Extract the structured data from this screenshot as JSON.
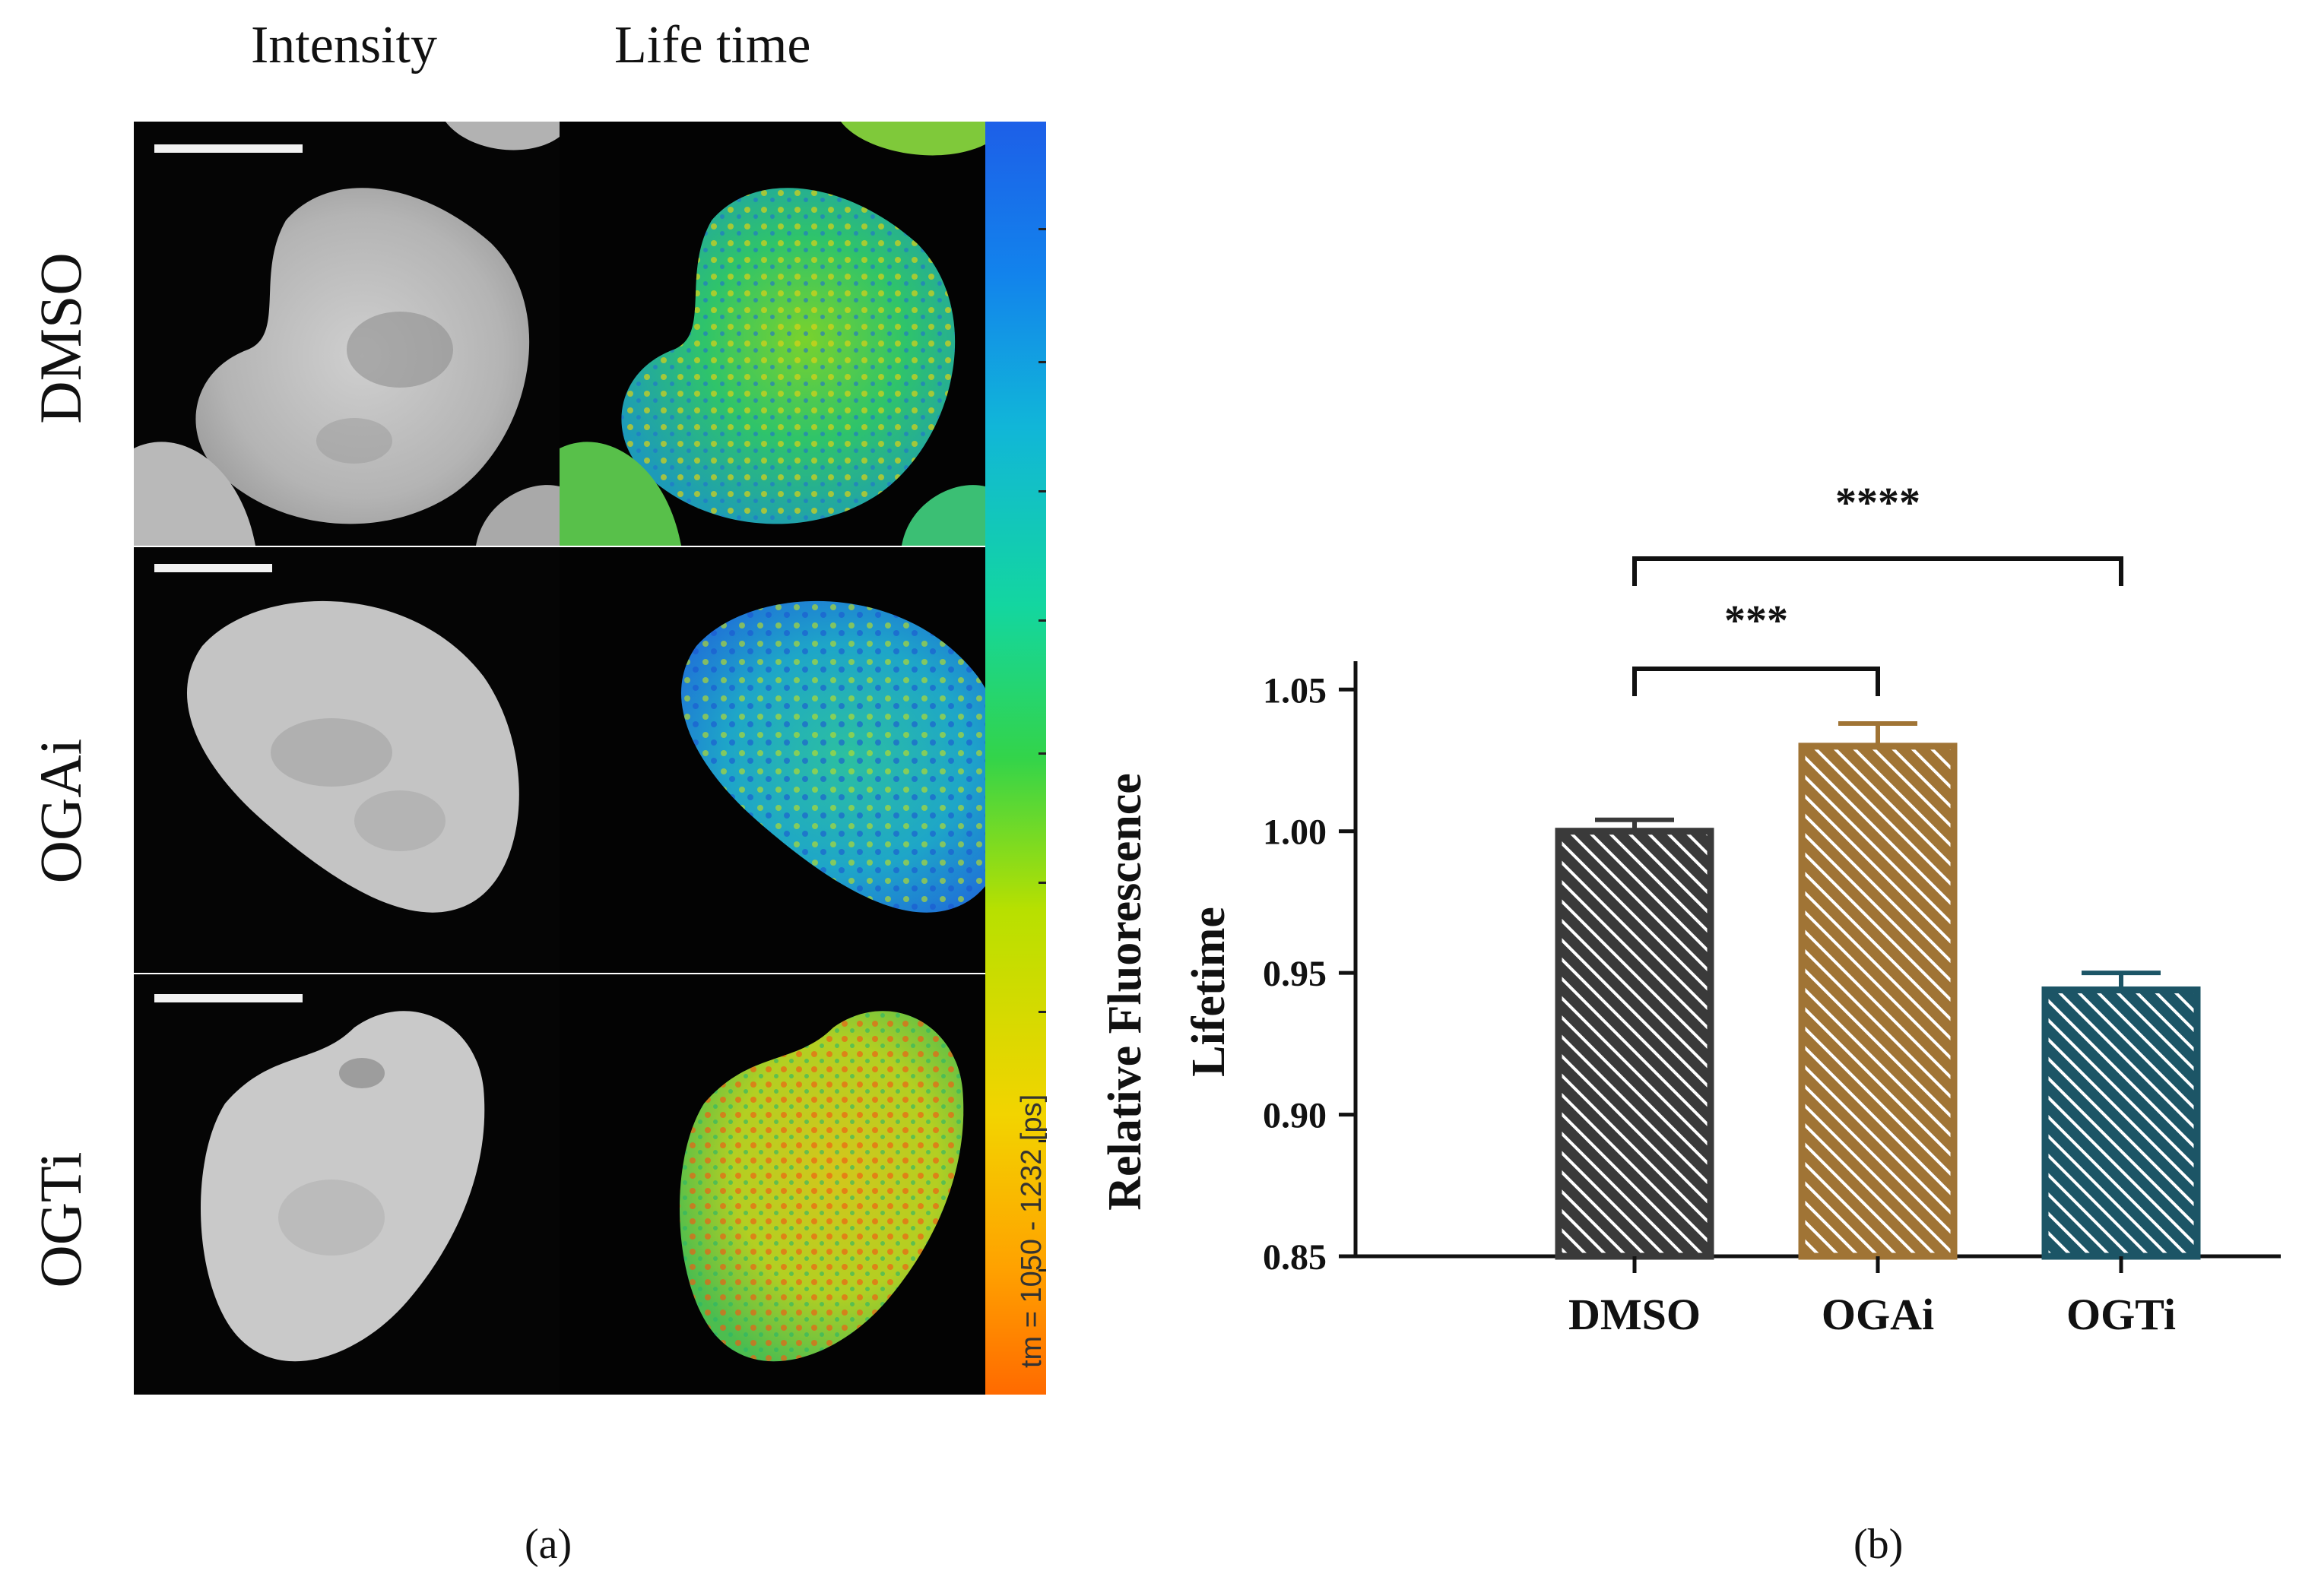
{
  "panel_a": {
    "column_headers": [
      "Intensity",
      "Life time"
    ],
    "row_labels": [
      "DMSO",
      "OGAi",
      "OGTi"
    ],
    "colorbar_label": "tm = 1050 - 1232 [ps]",
    "caption": "(a)"
  },
  "panel_b": {
    "caption": "(b)"
  },
  "colors": {
    "DMSO": "#3a3a3a",
    "OGAi": "#a07435",
    "OGTi": "#1c5566",
    "axis": "#111111"
  },
  "chart_data": {
    "type": "bar",
    "categories": [
      "DMSO",
      "OGAi",
      "OGTi"
    ],
    "values": [
      1.0,
      1.03,
      0.944
    ],
    "errors": [
      0.004,
      0.008,
      0.006
    ],
    "title": "",
    "xlabel": "",
    "ylabel": "Relative Fluorescence Lifetime",
    "ylabel_lines": [
      "Relative Fluorescence",
      "Lifetime"
    ],
    "ylim": [
      0.85,
      1.06
    ],
    "yticks": [
      0.85,
      0.9,
      0.95,
      1.0,
      1.05
    ],
    "ytick_labels": [
      "0.85",
      "0.90",
      "0.95",
      "1.00",
      "1.05"
    ],
    "significance": [
      {
        "from": "DMSO",
        "to": "OGAi",
        "label": "***"
      },
      {
        "from": "DMSO",
        "to": "OGTi",
        "label": "****"
      }
    ]
  }
}
